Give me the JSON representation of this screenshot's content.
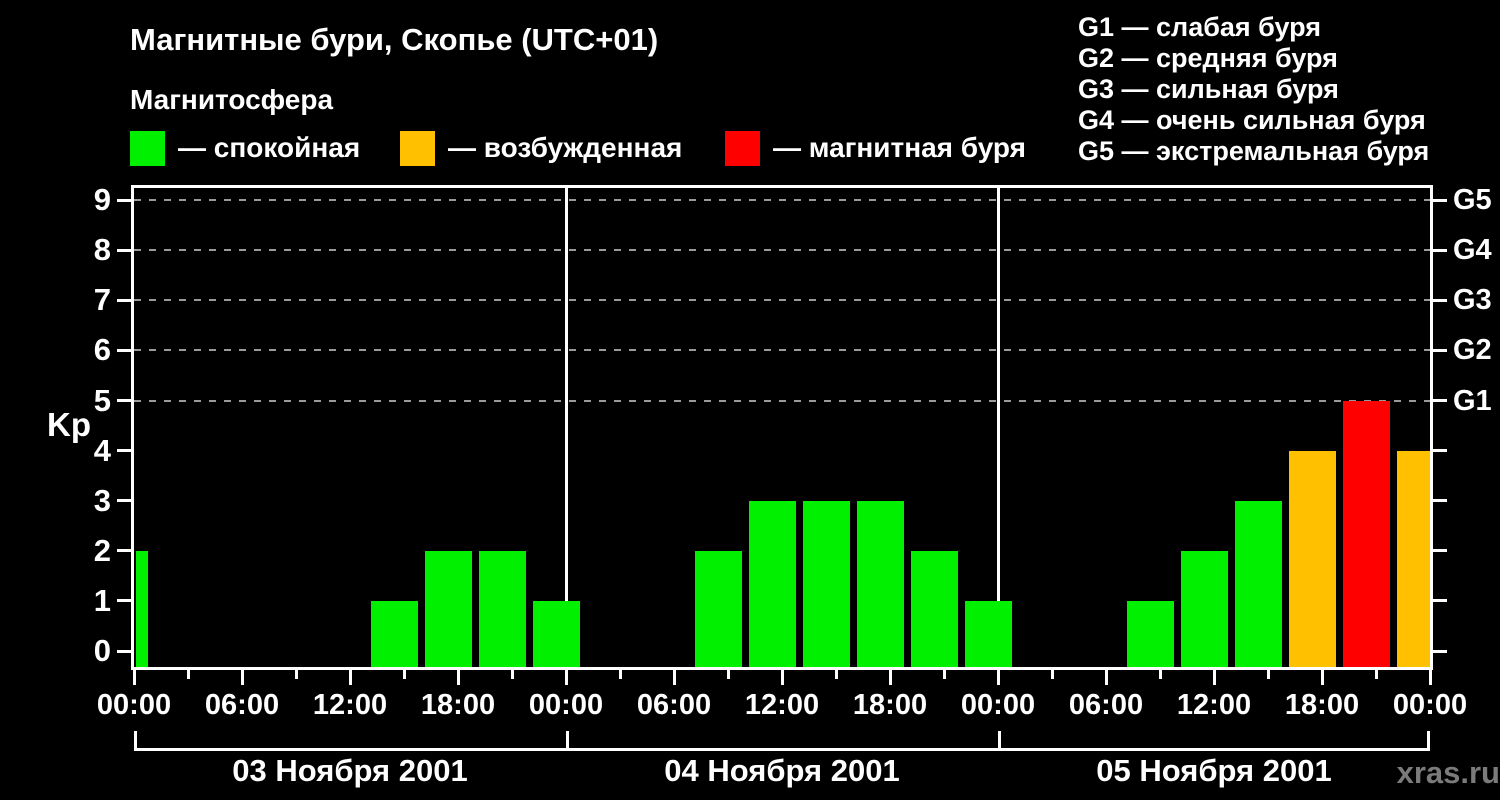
{
  "title": "Магнитные бури, Скопье (UTC+01)",
  "subtitle": "Магнитосфера",
  "watermark": "xras.ru",
  "colors": {
    "quiet": "#00f000",
    "excited": "#ffc000",
    "storm": "#ff0000",
    "axis": "#ffffff",
    "grid": "#9a9a9a",
    "background": "#000000",
    "watermark": "#7b7b7b"
  },
  "legend": [
    {
      "status": "quiet",
      "label": "— спокойная"
    },
    {
      "status": "excited",
      "label": "— возбужденная"
    },
    {
      "status": "storm",
      "label": "— магнитная буря"
    }
  ],
  "g_legend": [
    "G1 — слабая буря",
    "G2 — средняя буря",
    "G3 — сильная буря",
    "G4 — очень сильная буря",
    "G5 — экстремальная буря"
  ],
  "chart_data": {
    "type": "bar",
    "ylabel": "Kp",
    "ylim": [
      0,
      9
    ],
    "yticks": [
      0,
      1,
      2,
      3,
      4,
      5,
      6,
      7,
      8,
      9
    ],
    "right_axis_labels": [
      {
        "kp": 5,
        "label": "G1"
      },
      {
        "kp": 6,
        "label": "G2"
      },
      {
        "kp": 7,
        "label": "G3"
      },
      {
        "kp": 8,
        "label": "G4"
      },
      {
        "kp": 9,
        "label": "G5"
      }
    ],
    "dashed_gridlines_at_kp": [
      5,
      6,
      7,
      8,
      9
    ],
    "x_hours_total": 72,
    "minor_tick_every_h": 3,
    "major_tick_every_h": 6,
    "time_labels": [
      "00:00",
      "06:00",
      "12:00",
      "18:00",
      "00:00",
      "06:00",
      "12:00",
      "18:00",
      "00:00",
      "06:00",
      "12:00",
      "18:00",
      "00:00"
    ],
    "days": [
      {
        "label": "03 Ноября 2001",
        "start_h": 0,
        "end_h": 24
      },
      {
        "label": "04 Ноября 2001",
        "start_h": 24,
        "end_h": 48
      },
      {
        "label": "05 Ноября 2001",
        "start_h": 48,
        "end_h": 72
      }
    ],
    "day_separators_h": [
      24,
      48
    ],
    "bars": [
      {
        "date": "03 Ноября 2001",
        "start": "00:00",
        "end": "01:00",
        "start_h": 0,
        "end_h": 1,
        "kp": 2,
        "status": "quiet"
      },
      {
        "date": "03 Ноября 2001",
        "start": "13:00",
        "end": "16:00",
        "start_h": 13,
        "end_h": 16,
        "kp": 1,
        "status": "quiet"
      },
      {
        "date": "03 Ноября 2001",
        "start": "16:00",
        "end": "19:00",
        "start_h": 16,
        "end_h": 19,
        "kp": 2,
        "status": "quiet"
      },
      {
        "date": "03 Ноября 2001",
        "start": "19:00",
        "end": "22:00",
        "start_h": 19,
        "end_h": 22,
        "kp": 2,
        "status": "quiet"
      },
      {
        "date": "03 Ноября 2001",
        "start": "22:00",
        "end": "01:00",
        "start_h": 22,
        "end_h": 25,
        "kp": 1,
        "status": "quiet"
      },
      {
        "date": "04 Ноября 2001",
        "start": "07:00",
        "end": "10:00",
        "start_h": 31,
        "end_h": 34,
        "kp": 2,
        "status": "quiet"
      },
      {
        "date": "04 Ноября 2001",
        "start": "10:00",
        "end": "13:00",
        "start_h": 34,
        "end_h": 37,
        "kp": 3,
        "status": "quiet"
      },
      {
        "date": "04 Ноября 2001",
        "start": "13:00",
        "end": "16:00",
        "start_h": 37,
        "end_h": 40,
        "kp": 3,
        "status": "quiet"
      },
      {
        "date": "04 Ноября 2001",
        "start": "16:00",
        "end": "19:00",
        "start_h": 40,
        "end_h": 43,
        "kp": 3,
        "status": "quiet"
      },
      {
        "date": "04 Ноября 2001",
        "start": "19:00",
        "end": "22:00",
        "start_h": 43,
        "end_h": 46,
        "kp": 2,
        "status": "quiet"
      },
      {
        "date": "04 Ноября 2001",
        "start": "22:00",
        "end": "01:00",
        "start_h": 46,
        "end_h": 49,
        "kp": 1,
        "status": "quiet"
      },
      {
        "date": "05 Ноября 2001",
        "start": "07:00",
        "end": "10:00",
        "start_h": 55,
        "end_h": 58,
        "kp": 1,
        "status": "quiet"
      },
      {
        "date": "05 Ноября 2001",
        "start": "10:00",
        "end": "13:00",
        "start_h": 58,
        "end_h": 61,
        "kp": 2,
        "status": "quiet"
      },
      {
        "date": "05 Ноября 2001",
        "start": "13:00",
        "end": "16:00",
        "start_h": 61,
        "end_h": 64,
        "kp": 3,
        "status": "quiet"
      },
      {
        "date": "05 Ноября 2001",
        "start": "16:00",
        "end": "19:00",
        "start_h": 64,
        "end_h": 67,
        "kp": 4,
        "status": "excited"
      },
      {
        "date": "05 Ноября 2001",
        "start": "19:00",
        "end": "22:00",
        "start_h": 67,
        "end_h": 70,
        "kp": 5,
        "status": "storm"
      },
      {
        "date": "05 Ноября 2001",
        "start": "22:00",
        "end": "01:00",
        "start_h": 70,
        "end_h": 73,
        "kp": 4,
        "status": "excited"
      }
    ]
  }
}
